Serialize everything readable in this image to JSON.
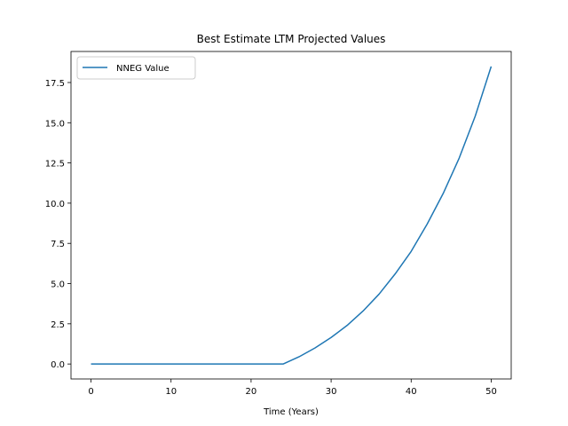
{
  "chart_data": {
    "type": "line",
    "title": "Best Estimate LTM Projected Values",
    "xlabel": "Time (Years)",
    "ylabel": "",
    "xlim": [
      -2.5,
      52.5
    ],
    "ylim": [
      -0.93,
      19.43
    ],
    "x_ticks": [
      0,
      10,
      20,
      30,
      40,
      50
    ],
    "x_tick_labels": [
      "0",
      "10",
      "20",
      "30",
      "40",
      "50"
    ],
    "y_ticks": [
      0,
      2.5,
      5,
      7.5,
      10,
      12.5,
      15,
      17.5
    ],
    "y_tick_labels": [
      "0.0",
      "2.5",
      "5.0",
      "7.5",
      "10.0",
      "12.5",
      "15.0",
      "17.5"
    ],
    "grid": false,
    "legend_position": "upper-left",
    "series": [
      {
        "name": "NNEG Value",
        "color": "#1f77b4",
        "x": [
          0,
          2,
          4,
          6,
          8,
          10,
          12,
          14,
          16,
          18,
          20,
          22,
          24,
          26,
          28,
          30,
          32,
          34,
          36,
          38,
          40,
          42,
          44,
          46,
          48,
          50
        ],
        "y": [
          0,
          0,
          0,
          0,
          0,
          0,
          0,
          0,
          0,
          0,
          0,
          0,
          0,
          0.45,
          1.0,
          1.65,
          2.4,
          3.3,
          4.35,
          5.6,
          7.0,
          8.7,
          10.6,
          12.8,
          15.4,
          18.5
        ]
      }
    ]
  }
}
